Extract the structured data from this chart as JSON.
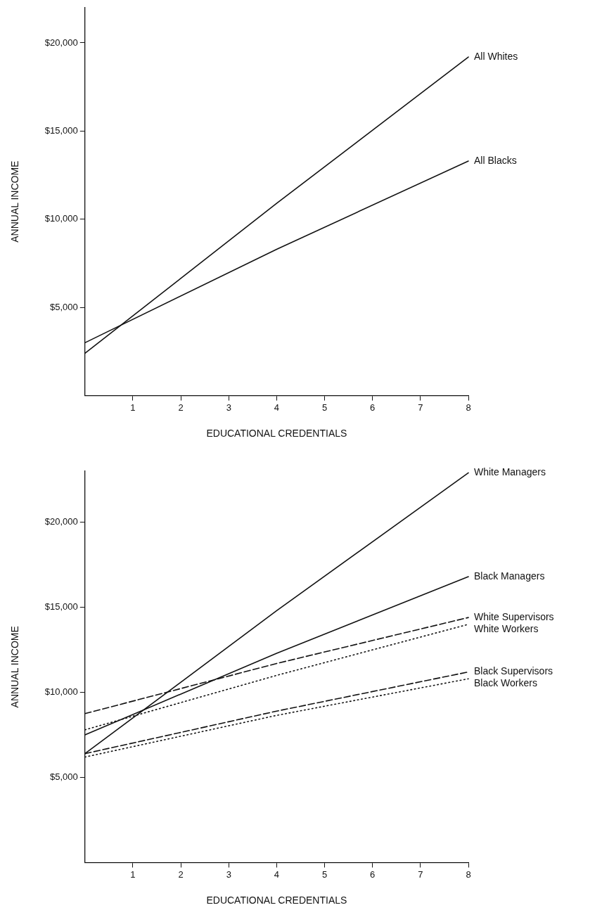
{
  "chart_data": [
    {
      "type": "line",
      "xlabel": "EDUCATIONAL CREDENTIALS",
      "ylabel": "ANNUAL INCOME",
      "x": [
        0,
        4,
        8
      ],
      "xlim": [
        0,
        8
      ],
      "xticks": [
        1,
        2,
        3,
        4,
        5,
        6,
        7,
        8
      ],
      "ylim": [
        0,
        22000
      ],
      "yticks": [
        {
          "value": 5000,
          "label": "$5,000"
        },
        {
          "value": 10000,
          "label": "$10,000"
        },
        {
          "value": 15000,
          "label": "$15,000"
        },
        {
          "value": 20000,
          "label": "$20,000"
        }
      ],
      "grid": false,
      "legend": false,
      "marker": "none",
      "series": [
        {
          "name": "All Whites",
          "color": "#111111",
          "values": [
            2400,
            10900,
            19200
          ],
          "line_style": "solid"
        },
        {
          "name": "All Blacks",
          "color": "#111111",
          "values": [
            3000,
            8300,
            13300
          ],
          "line_style": "solid"
        }
      ]
    },
    {
      "type": "line",
      "xlabel": "EDUCATIONAL CREDENTIALS",
      "ylabel": "ANNUAL INCOME",
      "x": [
        0,
        4,
        8
      ],
      "xlim": [
        0,
        8
      ],
      "xticks": [
        1,
        2,
        3,
        4,
        5,
        6,
        7,
        8
      ],
      "ylim": [
        0,
        23000
      ],
      "yticks": [
        {
          "value": 5000,
          "label": "$5,000"
        },
        {
          "value": 10000,
          "label": "$10,000"
        },
        {
          "value": 15000,
          "label": "$15,000"
        },
        {
          "value": 20000,
          "label": "$20,000"
        }
      ],
      "grid": false,
      "legend": false,
      "marker": "none",
      "series": [
        {
          "name": "White Managers",
          "color": "#111111",
          "values": [
            6400,
            14800,
            22900
          ],
          "line_style": "solid"
        },
        {
          "name": "Black Managers",
          "color": "#111111",
          "values": [
            7500,
            12300,
            16800
          ],
          "line_style": "solid"
        },
        {
          "name": "White Supervisors",
          "color": "#111111",
          "values": [
            8750,
            11700,
            14400
          ],
          "line_style": "dashed"
        },
        {
          "name": "White Workers",
          "color": "#111111",
          "values": [
            7800,
            11000,
            14000
          ],
          "line_style": "dotted"
        },
        {
          "name": "Black Supervisors",
          "color": "#111111",
          "values": [
            6400,
            8900,
            11200
          ],
          "line_style": "dashed"
        },
        {
          "name": "Black Workers",
          "color": "#111111",
          "values": [
            6200,
            8650,
            10800
          ],
          "line_style": "dotted"
        }
      ]
    }
  ]
}
